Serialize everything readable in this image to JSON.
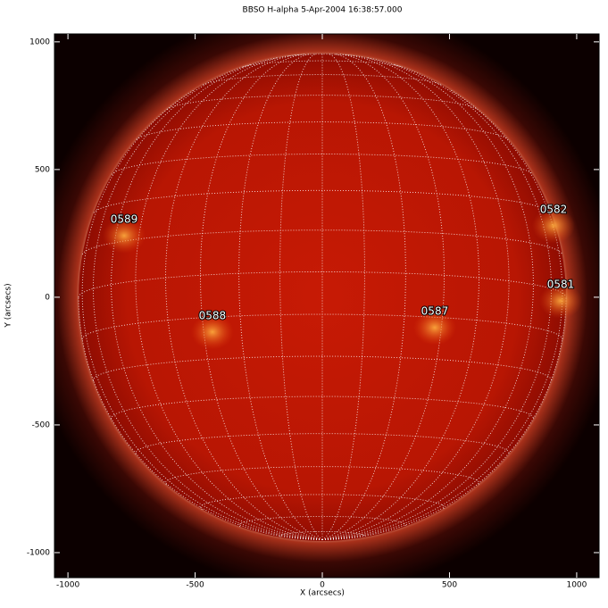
{
  "chart_data": {
    "type": "image",
    "title": "BBSO H-alpha  5-Apr-2004 16:38:57.000",
    "xlabel": "X (arcsecs)",
    "ylabel": "Y (arcsecs)",
    "xlim": [
      -1053,
      1088
    ],
    "ylim": [
      -1098,
      1031
    ],
    "xticks": [
      -1000,
      -500,
      0,
      500,
      1000
    ],
    "yticks": [
      -1000,
      -500,
      0,
      500,
      1000
    ],
    "annotations": [
      {
        "text": "0589",
        "x": -779,
        "y": 304
      },
      {
        "text": "0582",
        "x": 909,
        "y": 343
      },
      {
        "text": "0581",
        "x": 937,
        "y": 49
      },
      {
        "text": "0588",
        "x": -432,
        "y": -73
      },
      {
        "text": "0587",
        "x": 442,
        "y": -56
      }
    ]
  }
}
